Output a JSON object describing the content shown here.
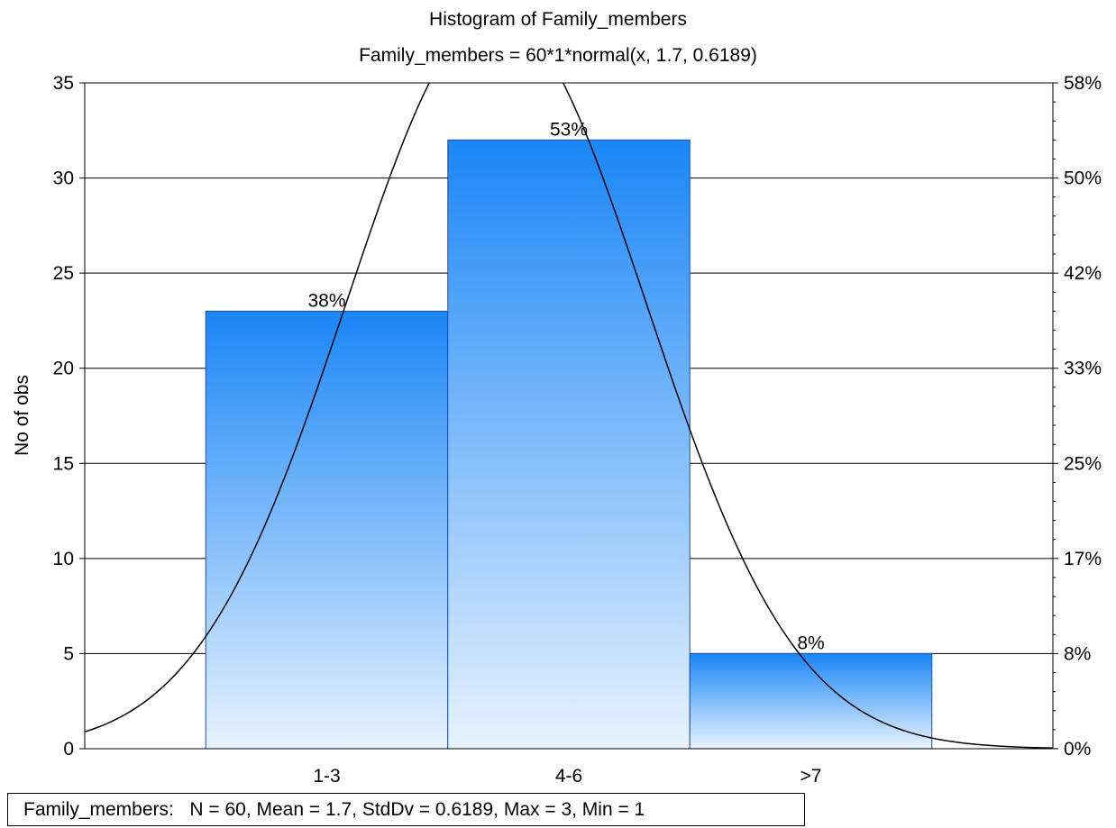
{
  "chart_data": {
    "type": "bar",
    "title": "Histogram of Family_members",
    "subtitle": "Family_members = 60*1*normal(x, 1.7, 0.6189)",
    "ylabel": "No of obs",
    "categories": [
      "1-3",
      "4-6",
      ">7"
    ],
    "values": [
      23,
      32,
      5
    ],
    "bar_labels": [
      "38%",
      "53%",
      "8%"
    ],
    "ylim": [
      0,
      35
    ],
    "yticks": [
      0,
      5,
      10,
      15,
      20,
      25,
      30,
      35
    ],
    "ytick_labels": [
      "0",
      "5",
      "10",
      "15",
      "20",
      "25",
      "30",
      "35"
    ],
    "y2ticks": [
      "0%",
      "8%",
      "17%",
      "25%",
      "33%",
      "42%",
      "50%",
      "58%"
    ],
    "grid": true,
    "bar_color": "#1E88F5",
    "fit": {
      "n": 60,
      "binwidth": 1,
      "mean": 1.7,
      "sd": 0.6189
    },
    "stats": "Family_members:   N = 60, Mean = 1.7, StdDv = 0.6189, Max = 3, Min = 1"
  }
}
